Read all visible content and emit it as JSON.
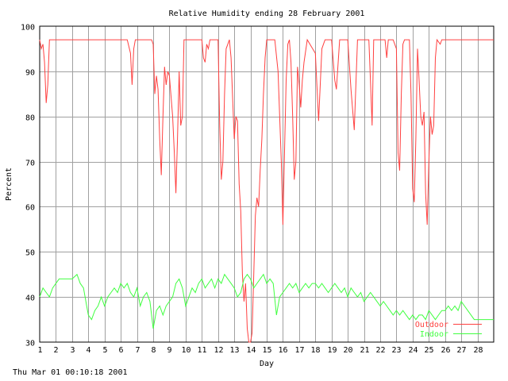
{
  "chart_data": {
    "type": "line",
    "title": "Relative Humidity ending 28 February 2001",
    "xlabel": "Day",
    "ylabel": "Percent",
    "xlim": [
      1,
      29.0
    ],
    "ylim": [
      30,
      100
    ],
    "x_ticks": [
      1,
      2,
      3,
      4,
      5,
      6,
      7,
      8,
      9,
      10,
      11,
      12,
      13,
      14,
      15,
      16,
      17,
      18,
      19,
      20,
      21,
      22,
      23,
      24,
      25,
      26,
      27,
      28
    ],
    "y_ticks": [
      30,
      40,
      50,
      60,
      70,
      80,
      90,
      100
    ],
    "grid": true,
    "legend_position": "bottom-right",
    "series": [
      {
        "name": "Outdoor",
        "color": "#ff4040",
        "points": [
          [
            1.0,
            97
          ],
          [
            1.1,
            95
          ],
          [
            1.2,
            96
          ],
          [
            1.3,
            92
          ],
          [
            1.4,
            83
          ],
          [
            1.5,
            87
          ],
          [
            1.6,
            97
          ],
          [
            2.0,
            97
          ],
          [
            3.0,
            97
          ],
          [
            4.0,
            97
          ],
          [
            5.0,
            97
          ],
          [
            6.0,
            97
          ],
          [
            6.4,
            97
          ],
          [
            6.6,
            94
          ],
          [
            6.7,
            87
          ],
          [
            6.8,
            95
          ],
          [
            6.9,
            97
          ],
          [
            7.0,
            97
          ],
          [
            7.5,
            97
          ],
          [
            7.9,
            97
          ],
          [
            8.0,
            96
          ],
          [
            8.1,
            85
          ],
          [
            8.2,
            89
          ],
          [
            8.3,
            86
          ],
          [
            8.4,
            75
          ],
          [
            8.5,
            67
          ],
          [
            8.6,
            80
          ],
          [
            8.7,
            91
          ],
          [
            8.8,
            87
          ],
          [
            8.9,
            90
          ],
          [
            9.0,
            89
          ],
          [
            9.2,
            80
          ],
          [
            9.3,
            72
          ],
          [
            9.4,
            63
          ],
          [
            9.5,
            75
          ],
          [
            9.6,
            90
          ],
          [
            9.7,
            78
          ],
          [
            9.8,
            80
          ],
          [
            9.9,
            97
          ],
          [
            10.5,
            97
          ],
          [
            11.0,
            97
          ],
          [
            11.1,
            93
          ],
          [
            11.2,
            92
          ],
          [
            11.3,
            96
          ],
          [
            11.4,
            95
          ],
          [
            11.5,
            97
          ],
          [
            12.0,
            97
          ],
          [
            12.1,
            78
          ],
          [
            12.2,
            66
          ],
          [
            12.3,
            70
          ],
          [
            12.4,
            85
          ],
          [
            12.5,
            95
          ],
          [
            12.6,
            96
          ],
          [
            12.7,
            97
          ],
          [
            12.8,
            93
          ],
          [
            12.9,
            84
          ],
          [
            13.0,
            75
          ],
          [
            13.1,
            80
          ],
          [
            13.2,
            79
          ],
          [
            13.3,
            65
          ],
          [
            13.4,
            59
          ],
          [
            13.5,
            45
          ],
          [
            13.6,
            39
          ],
          [
            13.7,
            43
          ],
          [
            13.8,
            33
          ],
          [
            13.9,
            30
          ],
          [
            14.0,
            30
          ],
          [
            14.1,
            32
          ],
          [
            14.2,
            45
          ],
          [
            14.3,
            58
          ],
          [
            14.4,
            62
          ],
          [
            14.5,
            60
          ],
          [
            14.6,
            68
          ],
          [
            14.7,
            75
          ],
          [
            14.8,
            85
          ],
          [
            14.9,
            93
          ],
          [
            15.0,
            97
          ],
          [
            15.5,
            97
          ],
          [
            15.7,
            90
          ],
          [
            15.9,
            70
          ],
          [
            16.0,
            56
          ],
          [
            16.2,
            88
          ],
          [
            16.3,
            96
          ],
          [
            16.4,
            97
          ],
          [
            16.5,
            92
          ],
          [
            16.6,
            80
          ],
          [
            16.7,
            66
          ],
          [
            16.8,
            70
          ],
          [
            16.9,
            91
          ],
          [
            17.0,
            87
          ],
          [
            17.1,
            82
          ],
          [
            17.2,
            88
          ],
          [
            17.3,
            92
          ],
          [
            17.5,
            97
          ],
          [
            18.0,
            94
          ],
          [
            18.2,
            79
          ],
          [
            18.4,
            95
          ],
          [
            18.6,
            97
          ],
          [
            19.0,
            97
          ],
          [
            19.2,
            88
          ],
          [
            19.3,
            86
          ],
          [
            19.5,
            97
          ],
          [
            20.0,
            97
          ],
          [
            20.2,
            86
          ],
          [
            20.4,
            77
          ],
          [
            20.6,
            97
          ],
          [
            21.0,
            97
          ],
          [
            21.3,
            97
          ],
          [
            21.4,
            88
          ],
          [
            21.5,
            78
          ],
          [
            21.6,
            97
          ],
          [
            22.0,
            97
          ],
          [
            22.3,
            97
          ],
          [
            22.4,
            93
          ],
          [
            22.5,
            97
          ],
          [
            22.8,
            97
          ],
          [
            23.0,
            95
          ],
          [
            23.1,
            72
          ],
          [
            23.2,
            68
          ],
          [
            23.3,
            85
          ],
          [
            23.4,
            96
          ],
          [
            23.5,
            97
          ],
          [
            23.8,
            97
          ],
          [
            23.9,
            85
          ],
          [
            24.0,
            64
          ],
          [
            24.1,
            61
          ],
          [
            24.2,
            75
          ],
          [
            24.3,
            95
          ],
          [
            24.4,
            88
          ],
          [
            24.5,
            80
          ],
          [
            24.6,
            78
          ],
          [
            24.7,
            81
          ],
          [
            24.8,
            63
          ],
          [
            24.9,
            56
          ],
          [
            25.0,
            70
          ],
          [
            25.1,
            80
          ],
          [
            25.2,
            76
          ],
          [
            25.3,
            78
          ],
          [
            25.4,
            93
          ],
          [
            25.5,
            97
          ],
          [
            25.7,
            96
          ],
          [
            25.8,
            97
          ],
          [
            26.0,
            97
          ],
          [
            27.0,
            97
          ],
          [
            28.0,
            97
          ],
          [
            29.0,
            97
          ]
        ]
      },
      {
        "name": "Indoor",
        "color": "#40ff40",
        "points": [
          [
            1.0,
            40
          ],
          [
            1.2,
            42
          ],
          [
            1.4,
            41
          ],
          [
            1.6,
            40
          ],
          [
            1.8,
            42
          ],
          [
            2.0,
            43
          ],
          [
            2.2,
            44
          ],
          [
            2.5,
            44
          ],
          [
            3.0,
            44
          ],
          [
            3.3,
            45
          ],
          [
            3.5,
            43
          ],
          [
            3.7,
            42
          ],
          [
            3.9,
            38
          ],
          [
            4.0,
            36
          ],
          [
            4.2,
            35
          ],
          [
            4.4,
            37
          ],
          [
            4.6,
            38
          ],
          [
            4.8,
            40
          ],
          [
            5.0,
            38
          ],
          [
            5.2,
            40
          ],
          [
            5.4,
            41
          ],
          [
            5.6,
            42
          ],
          [
            5.8,
            41
          ],
          [
            6.0,
            43
          ],
          [
            6.2,
            42
          ],
          [
            6.4,
            43
          ],
          [
            6.6,
            41
          ],
          [
            6.8,
            40
          ],
          [
            7.0,
            42
          ],
          [
            7.2,
            38
          ],
          [
            7.4,
            40
          ],
          [
            7.6,
            41
          ],
          [
            7.8,
            39
          ],
          [
            8.0,
            33
          ],
          [
            8.2,
            37
          ],
          [
            8.4,
            38
          ],
          [
            8.6,
            36
          ],
          [
            8.8,
            38
          ],
          [
            9.0,
            39
          ],
          [
            9.2,
            40
          ],
          [
            9.4,
            43
          ],
          [
            9.6,
            44
          ],
          [
            9.8,
            42
          ],
          [
            10.0,
            38
          ],
          [
            10.2,
            40
          ],
          [
            10.4,
            42
          ],
          [
            10.6,
            41
          ],
          [
            10.8,
            43
          ],
          [
            11.0,
            44
          ],
          [
            11.2,
            42
          ],
          [
            11.4,
            43
          ],
          [
            11.6,
            44
          ],
          [
            11.8,
            42
          ],
          [
            12.0,
            44
          ],
          [
            12.2,
            43
          ],
          [
            12.4,
            45
          ],
          [
            12.6,
            44
          ],
          [
            12.8,
            43
          ],
          [
            13.0,
            42
          ],
          [
            13.2,
            40
          ],
          [
            13.4,
            41
          ],
          [
            13.6,
            44
          ],
          [
            13.8,
            45
          ],
          [
            14.0,
            44
          ],
          [
            14.2,
            42
          ],
          [
            14.4,
            43
          ],
          [
            14.6,
            44
          ],
          [
            14.8,
            45
          ],
          [
            15.0,
            43
          ],
          [
            15.2,
            44
          ],
          [
            15.4,
            43
          ],
          [
            15.6,
            36
          ],
          [
            15.8,
            40
          ],
          [
            16.0,
            41
          ],
          [
            16.2,
            42
          ],
          [
            16.4,
            43
          ],
          [
            16.6,
            42
          ],
          [
            16.8,
            43
          ],
          [
            17.0,
            41
          ],
          [
            17.2,
            42
          ],
          [
            17.4,
            43
          ],
          [
            17.6,
            42
          ],
          [
            17.8,
            43
          ],
          [
            18.0,
            43
          ],
          [
            18.2,
            42
          ],
          [
            18.4,
            43
          ],
          [
            18.6,
            42
          ],
          [
            18.8,
            41
          ],
          [
            19.0,
            42
          ],
          [
            19.2,
            43
          ],
          [
            19.4,
            42
          ],
          [
            19.6,
            41
          ],
          [
            19.8,
            42
          ],
          [
            20.0,
            40
          ],
          [
            20.2,
            42
          ],
          [
            20.4,
            41
          ],
          [
            20.6,
            40
          ],
          [
            20.8,
            41
          ],
          [
            21.0,
            39
          ],
          [
            21.2,
            40
          ],
          [
            21.4,
            41
          ],
          [
            21.6,
            40
          ],
          [
            21.8,
            39
          ],
          [
            22.0,
            38
          ],
          [
            22.2,
            39
          ],
          [
            22.4,
            38
          ],
          [
            22.6,
            37
          ],
          [
            22.8,
            36
          ],
          [
            23.0,
            37
          ],
          [
            23.2,
            36
          ],
          [
            23.4,
            37
          ],
          [
            23.6,
            36
          ],
          [
            23.8,
            35
          ],
          [
            24.0,
            36
          ],
          [
            24.2,
            35
          ],
          [
            24.4,
            36
          ],
          [
            24.6,
            36
          ],
          [
            24.8,
            35
          ],
          [
            25.0,
            37
          ],
          [
            25.2,
            36
          ],
          [
            25.4,
            35
          ],
          [
            25.6,
            36
          ],
          [
            25.8,
            37
          ],
          [
            26.0,
            37
          ],
          [
            26.2,
            38
          ],
          [
            26.4,
            37
          ],
          [
            26.6,
            38
          ],
          [
            26.8,
            37
          ],
          [
            27.0,
            39
          ],
          [
            27.2,
            38
          ],
          [
            27.4,
            37
          ],
          [
            27.6,
            36
          ],
          [
            27.8,
            35
          ],
          [
            28.0,
            35
          ],
          [
            28.5,
            35
          ],
          [
            29.0,
            35
          ]
        ]
      }
    ]
  },
  "footer": {
    "timestamp": "Thu Mar 01 00:10:18 2001"
  }
}
